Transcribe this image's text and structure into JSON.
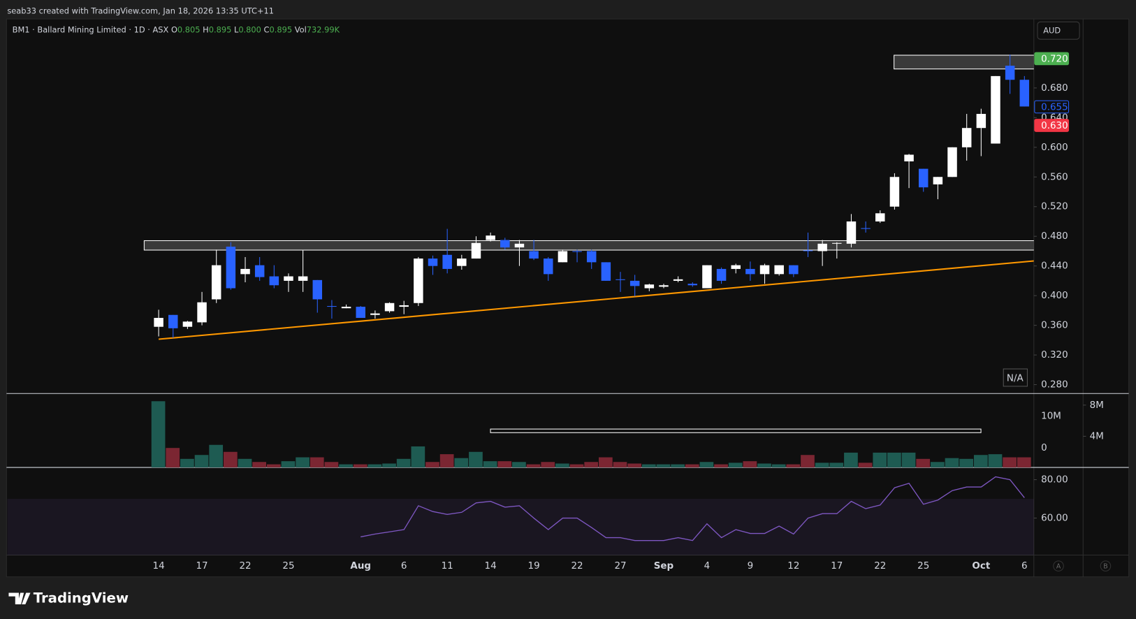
{
  "chart_data": {
    "type": "candlestick",
    "header": "seab33 created with TradingView.com, Jan 18, 2026 13:35 UTC+11",
    "legend": {
      "symbol": "BM1 · Ballard Mining Limited · 1D · ASX",
      "o": "O",
      "o_value": "0.805",
      "h": "H",
      "h_value": "0.895",
      "l": "L",
      "l_value": "0.800",
      "c": "C",
      "c_value": "0.895",
      "vol": "Vol",
      "vol_value": "732.99K"
    },
    "currency": "AUD",
    "na_label": "N/A",
    "brand": "TradingView",
    "axis_buttons": [
      "A",
      "B"
    ],
    "up_color": "#ffffff",
    "down_color": "#2962ff",
    "volume_up_color": "#1e5b52",
    "volume_down_color": "#7b2632",
    "rsi_color": "#7e57c2",
    "categories": [
      "14",
      null,
      null,
      "17",
      null,
      null,
      "22",
      null,
      null,
      "25",
      null,
      null,
      null,
      null,
      "Aug",
      null,
      null,
      "6",
      null,
      null,
      "11",
      null,
      null,
      "14",
      null,
      null,
      "19",
      null,
      null,
      "22",
      null,
      null,
      "27",
      null,
      null,
      "Sep",
      null,
      null,
      "4",
      null,
      null,
      "9",
      null,
      null,
      "12",
      null,
      null,
      "17",
      null,
      null,
      "22",
      null,
      null,
      "25",
      null,
      null,
      null,
      "Oct",
      null,
      null,
      "6"
    ],
    "open": [
      0.358,
      0.374,
      0.358,
      0.364,
      0.395,
      0.466,
      0.429,
      0.441,
      0.426,
      0.42,
      0.42,
      0.421,
      0.386,
      0.383,
      0.385,
      0.374,
      0.379,
      0.385,
      0.39,
      0.45,
      0.455,
      0.44,
      0.45,
      0.475,
      0.475,
      0.465,
      0.46,
      0.45,
      0.445,
      0.46,
      0.46,
      0.445,
      0.422,
      0.42,
      0.41,
      0.412,
      0.42,
      0.416,
      0.41,
      0.436,
      0.436,
      0.436,
      0.429,
      0.429,
      0.441,
      0.461,
      0.46,
      0.47,
      0.47,
      0.491,
      0.5,
      0.52,
      0.581,
      0.571,
      0.55,
      0.56,
      0.6,
      0.626,
      0.605,
      0.71,
      0.691
    ],
    "high": [
      0.381,
      0.374,
      0.366,
      0.405,
      0.462,
      0.472,
      0.452,
      0.452,
      0.441,
      0.43,
      0.461,
      0.421,
      0.394,
      0.388,
      0.386,
      0.38,
      0.391,
      0.393,
      0.452,
      0.454,
      0.49,
      0.455,
      0.48,
      0.485,
      0.478,
      0.475,
      0.475,
      0.452,
      0.462,
      0.462,
      0.462,
      0.445,
      0.432,
      0.428,
      0.416,
      0.416,
      0.426,
      0.418,
      0.441,
      0.438,
      0.443,
      0.446,
      0.443,
      0.441,
      0.441,
      0.485,
      0.475,
      0.472,
      0.51,
      0.5,
      0.515,
      0.565,
      0.591,
      0.571,
      0.56,
      0.6,
      0.645,
      0.652,
      0.696,
      0.725,
      0.696
    ],
    "low": [
      0.345,
      0.343,
      0.355,
      0.36,
      0.39,
      0.408,
      0.418,
      0.42,
      0.41,
      0.405,
      0.405,
      0.377,
      0.369,
      0.383,
      0.37,
      0.369,
      0.377,
      0.375,
      0.386,
      0.428,
      0.43,
      0.435,
      0.45,
      0.473,
      0.462,
      0.44,
      0.448,
      0.42,
      0.445,
      0.445,
      0.436,
      0.42,
      0.405,
      0.399,
      0.406,
      0.41,
      0.418,
      0.412,
      0.41,
      0.416,
      0.43,
      0.42,
      0.416,
      0.427,
      0.425,
      0.452,
      0.44,
      0.45,
      0.465,
      0.485,
      0.498,
      0.516,
      0.545,
      0.54,
      0.53,
      0.56,
      0.582,
      0.588,
      0.605,
      0.672,
      0.655
    ],
    "close": [
      0.37,
      0.356,
      0.365,
      0.391,
      0.441,
      0.41,
      0.436,
      0.425,
      0.414,
      0.426,
      0.426,
      0.395,
      0.385,
      0.385,
      0.37,
      0.376,
      0.39,
      0.387,
      0.45,
      0.44,
      0.436,
      0.45,
      0.471,
      0.481,
      0.465,
      0.47,
      0.45,
      0.429,
      0.46,
      0.459,
      0.445,
      0.42,
      0.421,
      0.413,
      0.415,
      0.414,
      0.422,
      0.414,
      0.441,
      0.42,
      0.441,
      0.429,
      0.441,
      0.441,
      0.429,
      0.46,
      0.47,
      0.471,
      0.5,
      0.49,
      0.511,
      0.56,
      0.59,
      0.546,
      0.56,
      0.6,
      0.626,
      0.645,
      0.696,
      0.691,
      0.655
    ],
    "ylim": [
      0.268,
      0.772
    ],
    "yticks": [
      {
        "value": 0.28,
        "label": "0.280"
      },
      {
        "value": 0.32,
        "label": "0.320"
      },
      {
        "value": 0.36,
        "label": "0.360"
      },
      {
        "value": 0.4,
        "label": "0.400"
      },
      {
        "value": 0.44,
        "label": "0.440"
      },
      {
        "value": 0.48,
        "label": "0.480"
      },
      {
        "value": 0.52,
        "label": "0.520"
      },
      {
        "value": 0.56,
        "label": "0.560"
      },
      {
        "value": 0.6,
        "label": "0.600"
      },
      {
        "value": 0.64,
        "label": "0.640"
      },
      {
        "value": 0.68,
        "label": "0.680"
      }
    ],
    "price_labels": [
      {
        "value": 0.72,
        "label": "0.720",
        "color": "#4caf50"
      },
      {
        "value": 0.655,
        "label": "0.655",
        "color": "#2962ff"
      },
      {
        "value": 0.63,
        "label": "0.630",
        "color": "#f23645"
      }
    ],
    "volume": [
      8500000,
      2500000,
      1100000,
      1600000,
      2900000,
      2000000,
      1100000,
      700000,
      400000,
      800000,
      1300000,
      1300000,
      700000,
      400000,
      400000,
      400000,
      500000,
      1100000,
      2700000,
      700000,
      1700000,
      1200000,
      2000000,
      800000,
      800000,
      700000,
      400000,
      700000,
      500000,
      400000,
      700000,
      1300000,
      700000,
      500000,
      400000,
      400000,
      400000,
      400000,
      700000,
      400000,
      600000,
      800000,
      500000,
      400000,
      400000,
      1600000,
      600000,
      600000,
      1900000,
      600000,
      1900000,
      1900000,
      1900000,
      1100000,
      700000,
      1200000,
      1100000,
      1600000,
      1700000,
      1300000,
      1300000
    ],
    "volume_ylim": [
      0,
      9300000
    ],
    "volume_yticks": [
      {
        "value": 4000000,
        "label": "4M"
      },
      {
        "value": 8000000,
        "label": "8M"
      }
    ],
    "volume_ma_labels": [
      "10M",
      "0"
    ],
    "rsi": [
      null,
      null,
      null,
      null,
      null,
      null,
      null,
      null,
      null,
      null,
      null,
      null,
      null,
      null,
      50.2,
      51.7,
      52.8,
      54.0,
      66.4,
      63.4,
      61.9,
      63.0,
      67.9,
      68.7,
      65.7,
      66.4,
      60,
      54,
      60,
      60,
      55.1,
      49.8,
      49.8,
      48.3,
      48.3,
      48.3,
      49.8,
      48.3,
      57,
      49.8,
      54,
      52,
      52,
      55.8,
      51.7,
      60,
      62.3,
      62.3,
      68.7,
      64.9,
      66.8,
      75.8,
      78.1,
      67.2,
      69.4,
      74.3,
      76.2,
      76.2,
      81.5,
      80,
      70.6
    ],
    "rsi_ylim": [
      40.7,
      86
    ],
    "rsi_yticks": [
      {
        "value": 60,
        "label": "60.00"
      },
      {
        "value": 80,
        "label": "80.00"
      }
    ],
    "rsi_band": [
      30,
      70
    ]
  }
}
